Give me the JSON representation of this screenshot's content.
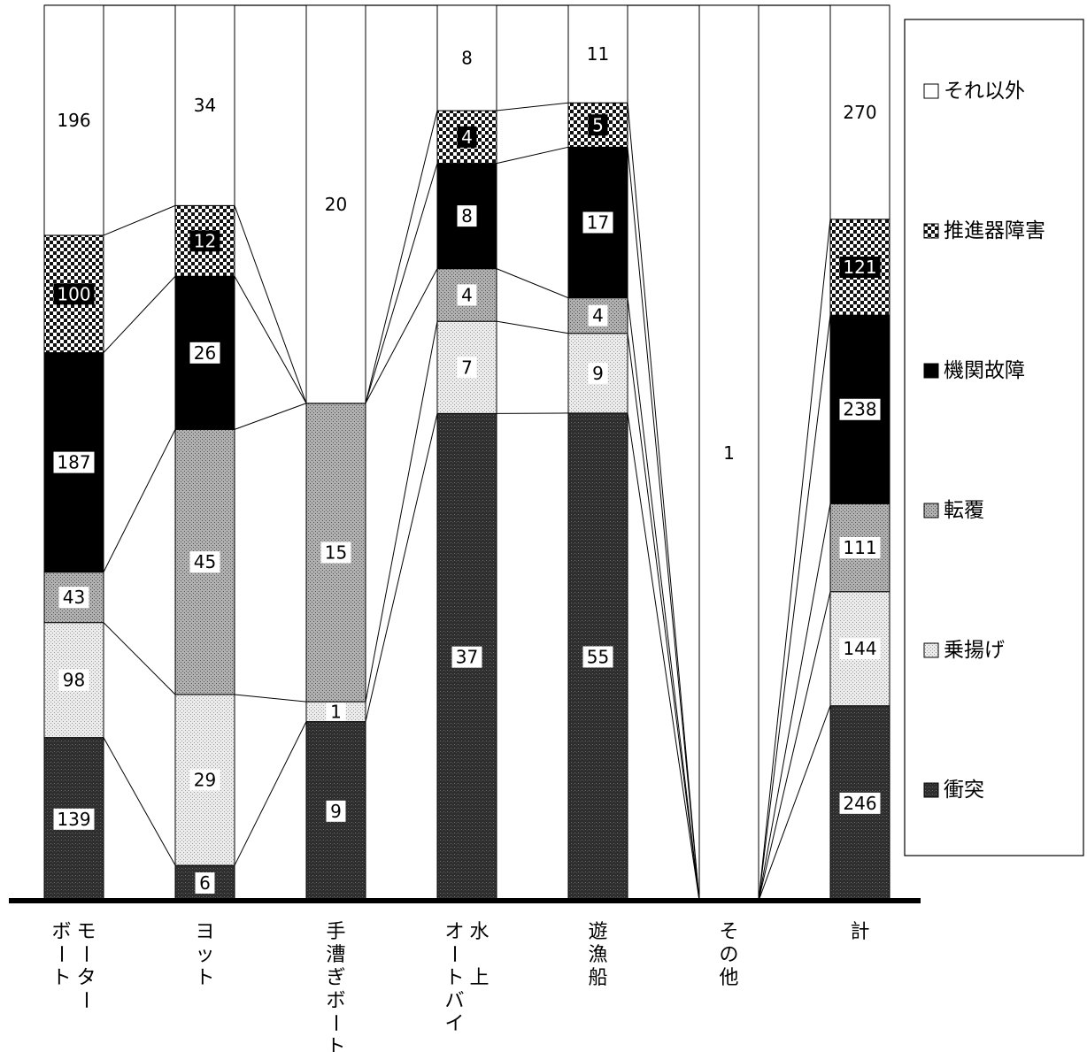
{
  "chart_data": {
    "type": "bar",
    "stacked": "percent",
    "categories": [
      "モーターボート",
      "ヨット",
      "手漕ぎボート",
      "水上オートバイ",
      "遊漁船",
      "その他",
      "計"
    ],
    "category_display": [
      {
        "columns": [
          "モーター",
          "ボート"
        ]
      },
      {
        "columns": [
          "ヨット"
        ]
      },
      {
        "columns": [
          "手漕ぎボート"
        ]
      },
      {
        "columns": [
          "水　上",
          "オートバイ"
        ]
      },
      {
        "columns": [
          "遊漁船"
        ]
      },
      {
        "columns": [
          "その他"
        ]
      },
      {
        "columns": [
          "計"
        ]
      }
    ],
    "series": [
      {
        "name": "衝突",
        "values": [
          139,
          6,
          9,
          37,
          55,
          0,
          246
        ],
        "fill": "#2a2a2a",
        "pattern": "dark-stipple",
        "inverse_label": false
      },
      {
        "name": "乗揚げ",
        "values": [
          98,
          29,
          1,
          7,
          9,
          0,
          144
        ],
        "fill": "#e3e3e3",
        "pattern": "light-stipple",
        "inverse_label": false
      },
      {
        "name": "転覆",
        "values": [
          43,
          45,
          15,
          4,
          4,
          0,
          111
        ],
        "fill": "#a3a3a3",
        "pattern": "mid-stipple",
        "inverse_label": false
      },
      {
        "name": "機関故障",
        "values": [
          187,
          26,
          0,
          8,
          17,
          0,
          238
        ],
        "fill": "#000000",
        "pattern": "solid",
        "inverse_label": false
      },
      {
        "name": "推進器障害",
        "values": [
          100,
          12,
          0,
          4,
          5,
          0,
          121
        ],
        "fill": "#ffffff",
        "pattern": "checker",
        "inverse_label": true
      },
      {
        "name": "それ以外",
        "values": [
          196,
          34,
          20,
          8,
          11,
          1,
          270
        ],
        "fill": "#ffffff",
        "pattern": "none",
        "inverse_label": false
      }
    ],
    "legend": {
      "position": "right",
      "order": [
        "それ以外",
        "推進器障害",
        "機関故障",
        "転覆",
        "乗揚げ",
        "衝突"
      ]
    },
    "grid": false
  }
}
